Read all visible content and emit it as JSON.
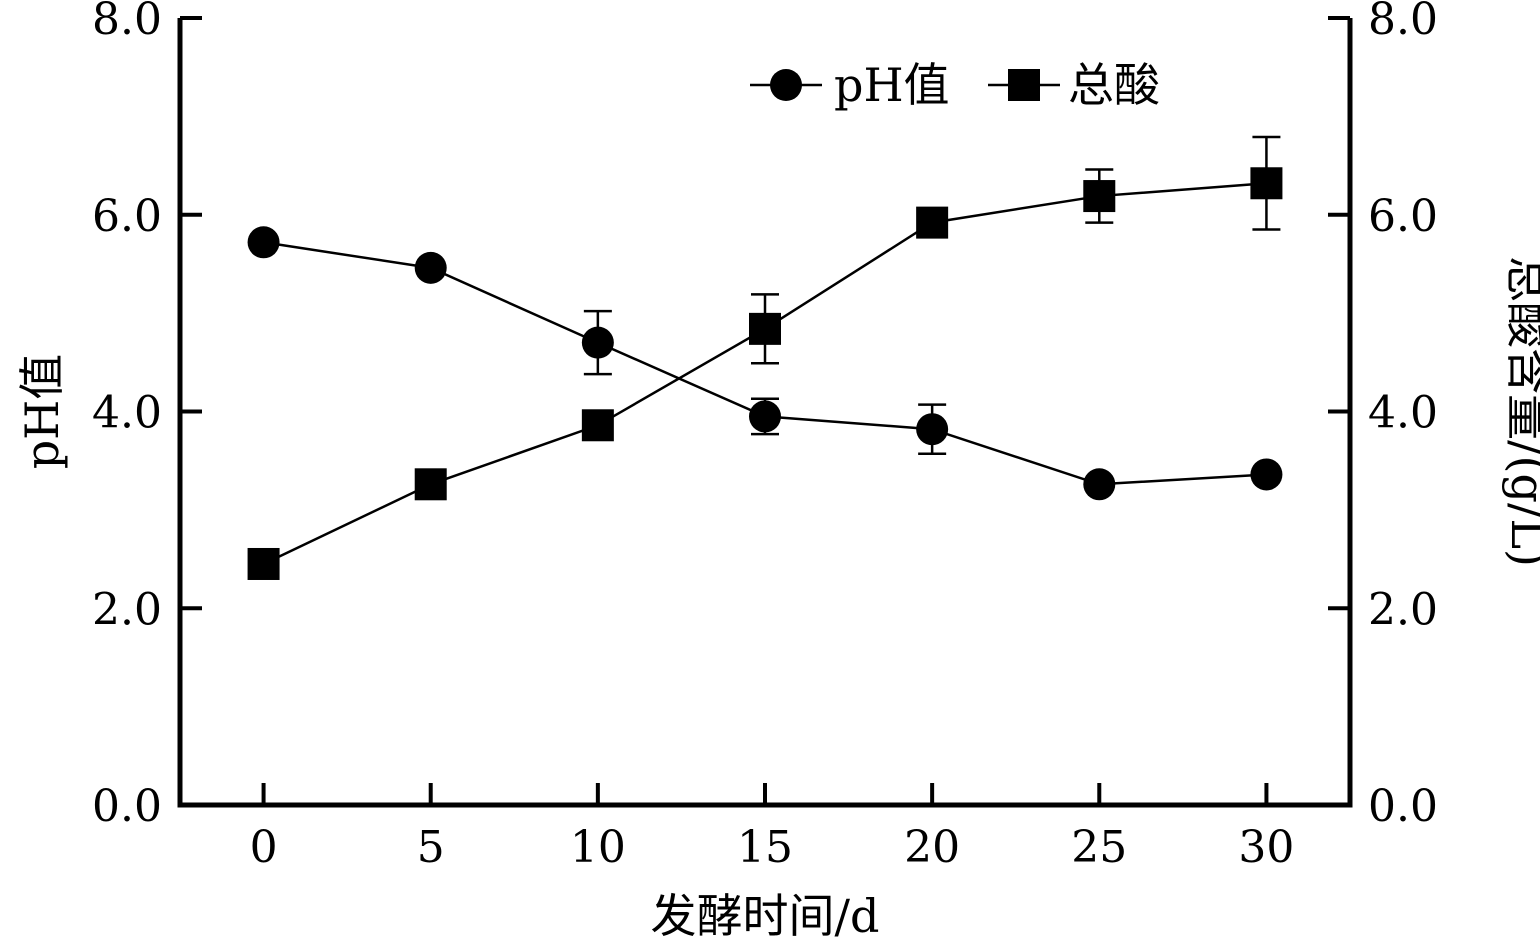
{
  "chart_data": {
    "type": "line",
    "x": [
      0,
      5,
      10,
      15,
      20,
      25,
      30
    ],
    "xlabel": "发酵时间/d",
    "ylabel_left": "pH值",
    "ylabel_right": "总酸含量/(g/L)",
    "xlim": [
      -2.5,
      32.5
    ],
    "ylim_left": [
      0,
      8
    ],
    "ylim_right": [
      0,
      8
    ],
    "x_ticks": [
      "0",
      "5",
      "10",
      "15",
      "20",
      "25",
      "30"
    ],
    "y_ticks_left": [
      "0.0",
      "2.0",
      "4.0",
      "6.0",
      "8.0"
    ],
    "y_ticks_right": [
      "0.0",
      "2.0",
      "4.0",
      "6.0",
      "8.0"
    ],
    "grid": false,
    "legend_position": "top-right",
    "series": [
      {
        "name": "pH值",
        "axis": "left",
        "marker": "circle",
        "values": [
          5.72,
          5.46,
          4.7,
          3.95,
          3.82,
          3.26,
          3.36
        ],
        "errors": [
          0,
          0,
          0.32,
          0.18,
          0.25,
          0,
          0
        ]
      },
      {
        "name": "总酸",
        "axis": "right",
        "marker": "square",
        "values": [
          2.45,
          3.26,
          3.86,
          4.84,
          5.92,
          6.19,
          6.32
        ],
        "errors": [
          0,
          0,
          0,
          0.35,
          0,
          0.27,
          0.47
        ]
      }
    ]
  }
}
